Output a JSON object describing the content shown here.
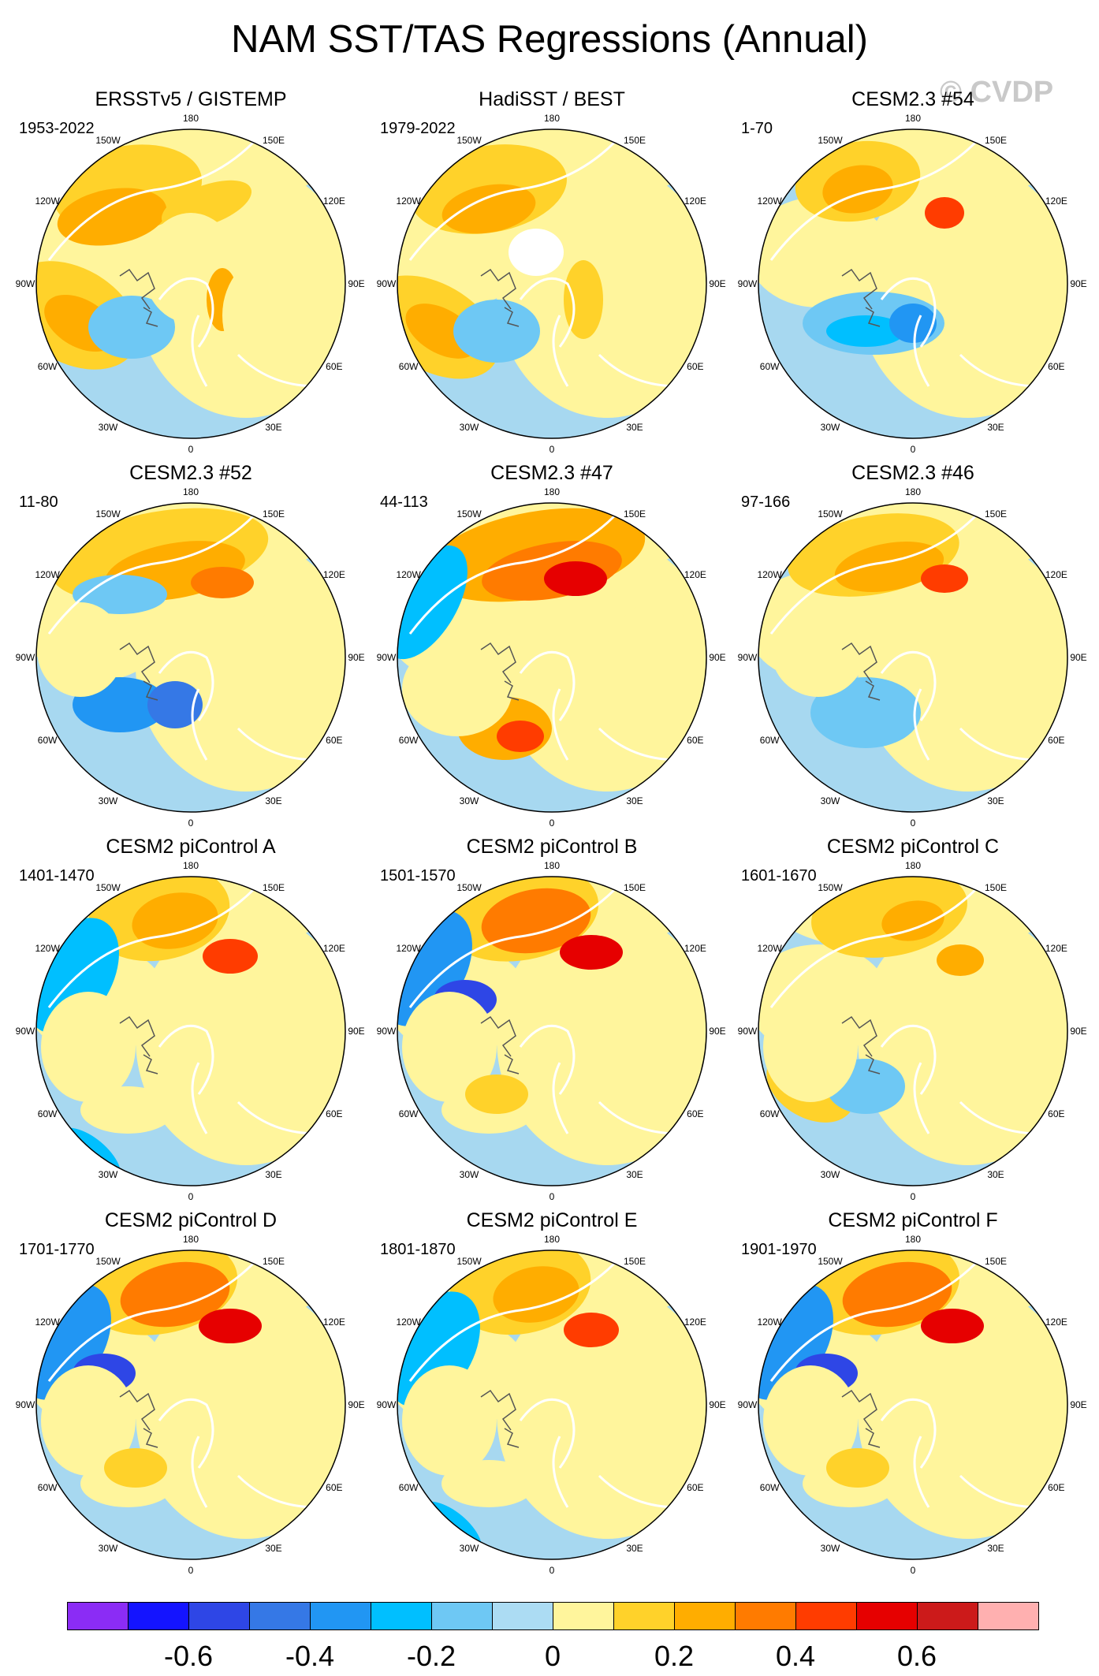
{
  "title": "NAM SST/TAS Regressions (Annual)",
  "watermark": "© CVDP",
  "colors": {
    "land_outline": "#ffffff",
    "coast": "#555555",
    "neutral": "#fff59c",
    "ocean_neutral": "#a7d8f0"
  },
  "longitude_labels": [
    "180",
    "150E",
    "120E",
    "90E",
    "60E",
    "30E",
    "0",
    "30W",
    "60W",
    "90W",
    "120W",
    "150W"
  ],
  "panels": [
    {
      "title": "ERSSTv5 / GISTEMP",
      "period": "1953-2022",
      "variant": "obs"
    },
    {
      "title": "HadiSST / BEST",
      "period": "1979-2022",
      "variant": "obs2"
    },
    {
      "title": "CESM2.3 #54",
      "period": "1-70",
      "variant": "cold"
    },
    {
      "title": "CESM2.3 #52",
      "period": "11-80",
      "variant": "mixed"
    },
    {
      "title": "CESM2.3 #47",
      "period": "44-113",
      "variant": "warm"
    },
    {
      "title": "CESM2.3 #46",
      "period": "97-166",
      "variant": "mild"
    },
    {
      "title": "CESM2 piControl A",
      "period": "1401-1470",
      "variant": "pic"
    },
    {
      "title": "CESM2 piControl B",
      "period": "1501-1570",
      "variant": "picB"
    },
    {
      "title": "CESM2 piControl C",
      "period": "1601-1670",
      "variant": "picC"
    },
    {
      "title": "CESM2 piControl D",
      "period": "1701-1770",
      "variant": "picB"
    },
    {
      "title": "CESM2 piControl E",
      "period": "1801-1870",
      "variant": "pic"
    },
    {
      "title": "CESM2 piControl F",
      "period": "1901-1970",
      "variant": "picB"
    }
  ],
  "colorbar": {
    "colors": [
      "#8b2cf5",
      "#1414ff",
      "#2e46e6",
      "#3578e6",
      "#2196f3",
      "#00bfff",
      "#6ec8f4",
      "#acdcf3",
      "#fff59c",
      "#ffd22a",
      "#ffad00",
      "#ff7b00",
      "#ff3c00",
      "#e60000",
      "#cc1a1a",
      "#ffb0b0"
    ],
    "labels": [
      {
        "text": "-0.6",
        "at": 2
      },
      {
        "text": "-0.4",
        "at": 4
      },
      {
        "text": "-0.2",
        "at": 6
      },
      {
        "text": "0",
        "at": 8
      },
      {
        "text": "0.2",
        "at": 10
      },
      {
        "text": "0.4",
        "at": 12
      },
      {
        "text": "0.6",
        "at": 14
      }
    ]
  }
}
